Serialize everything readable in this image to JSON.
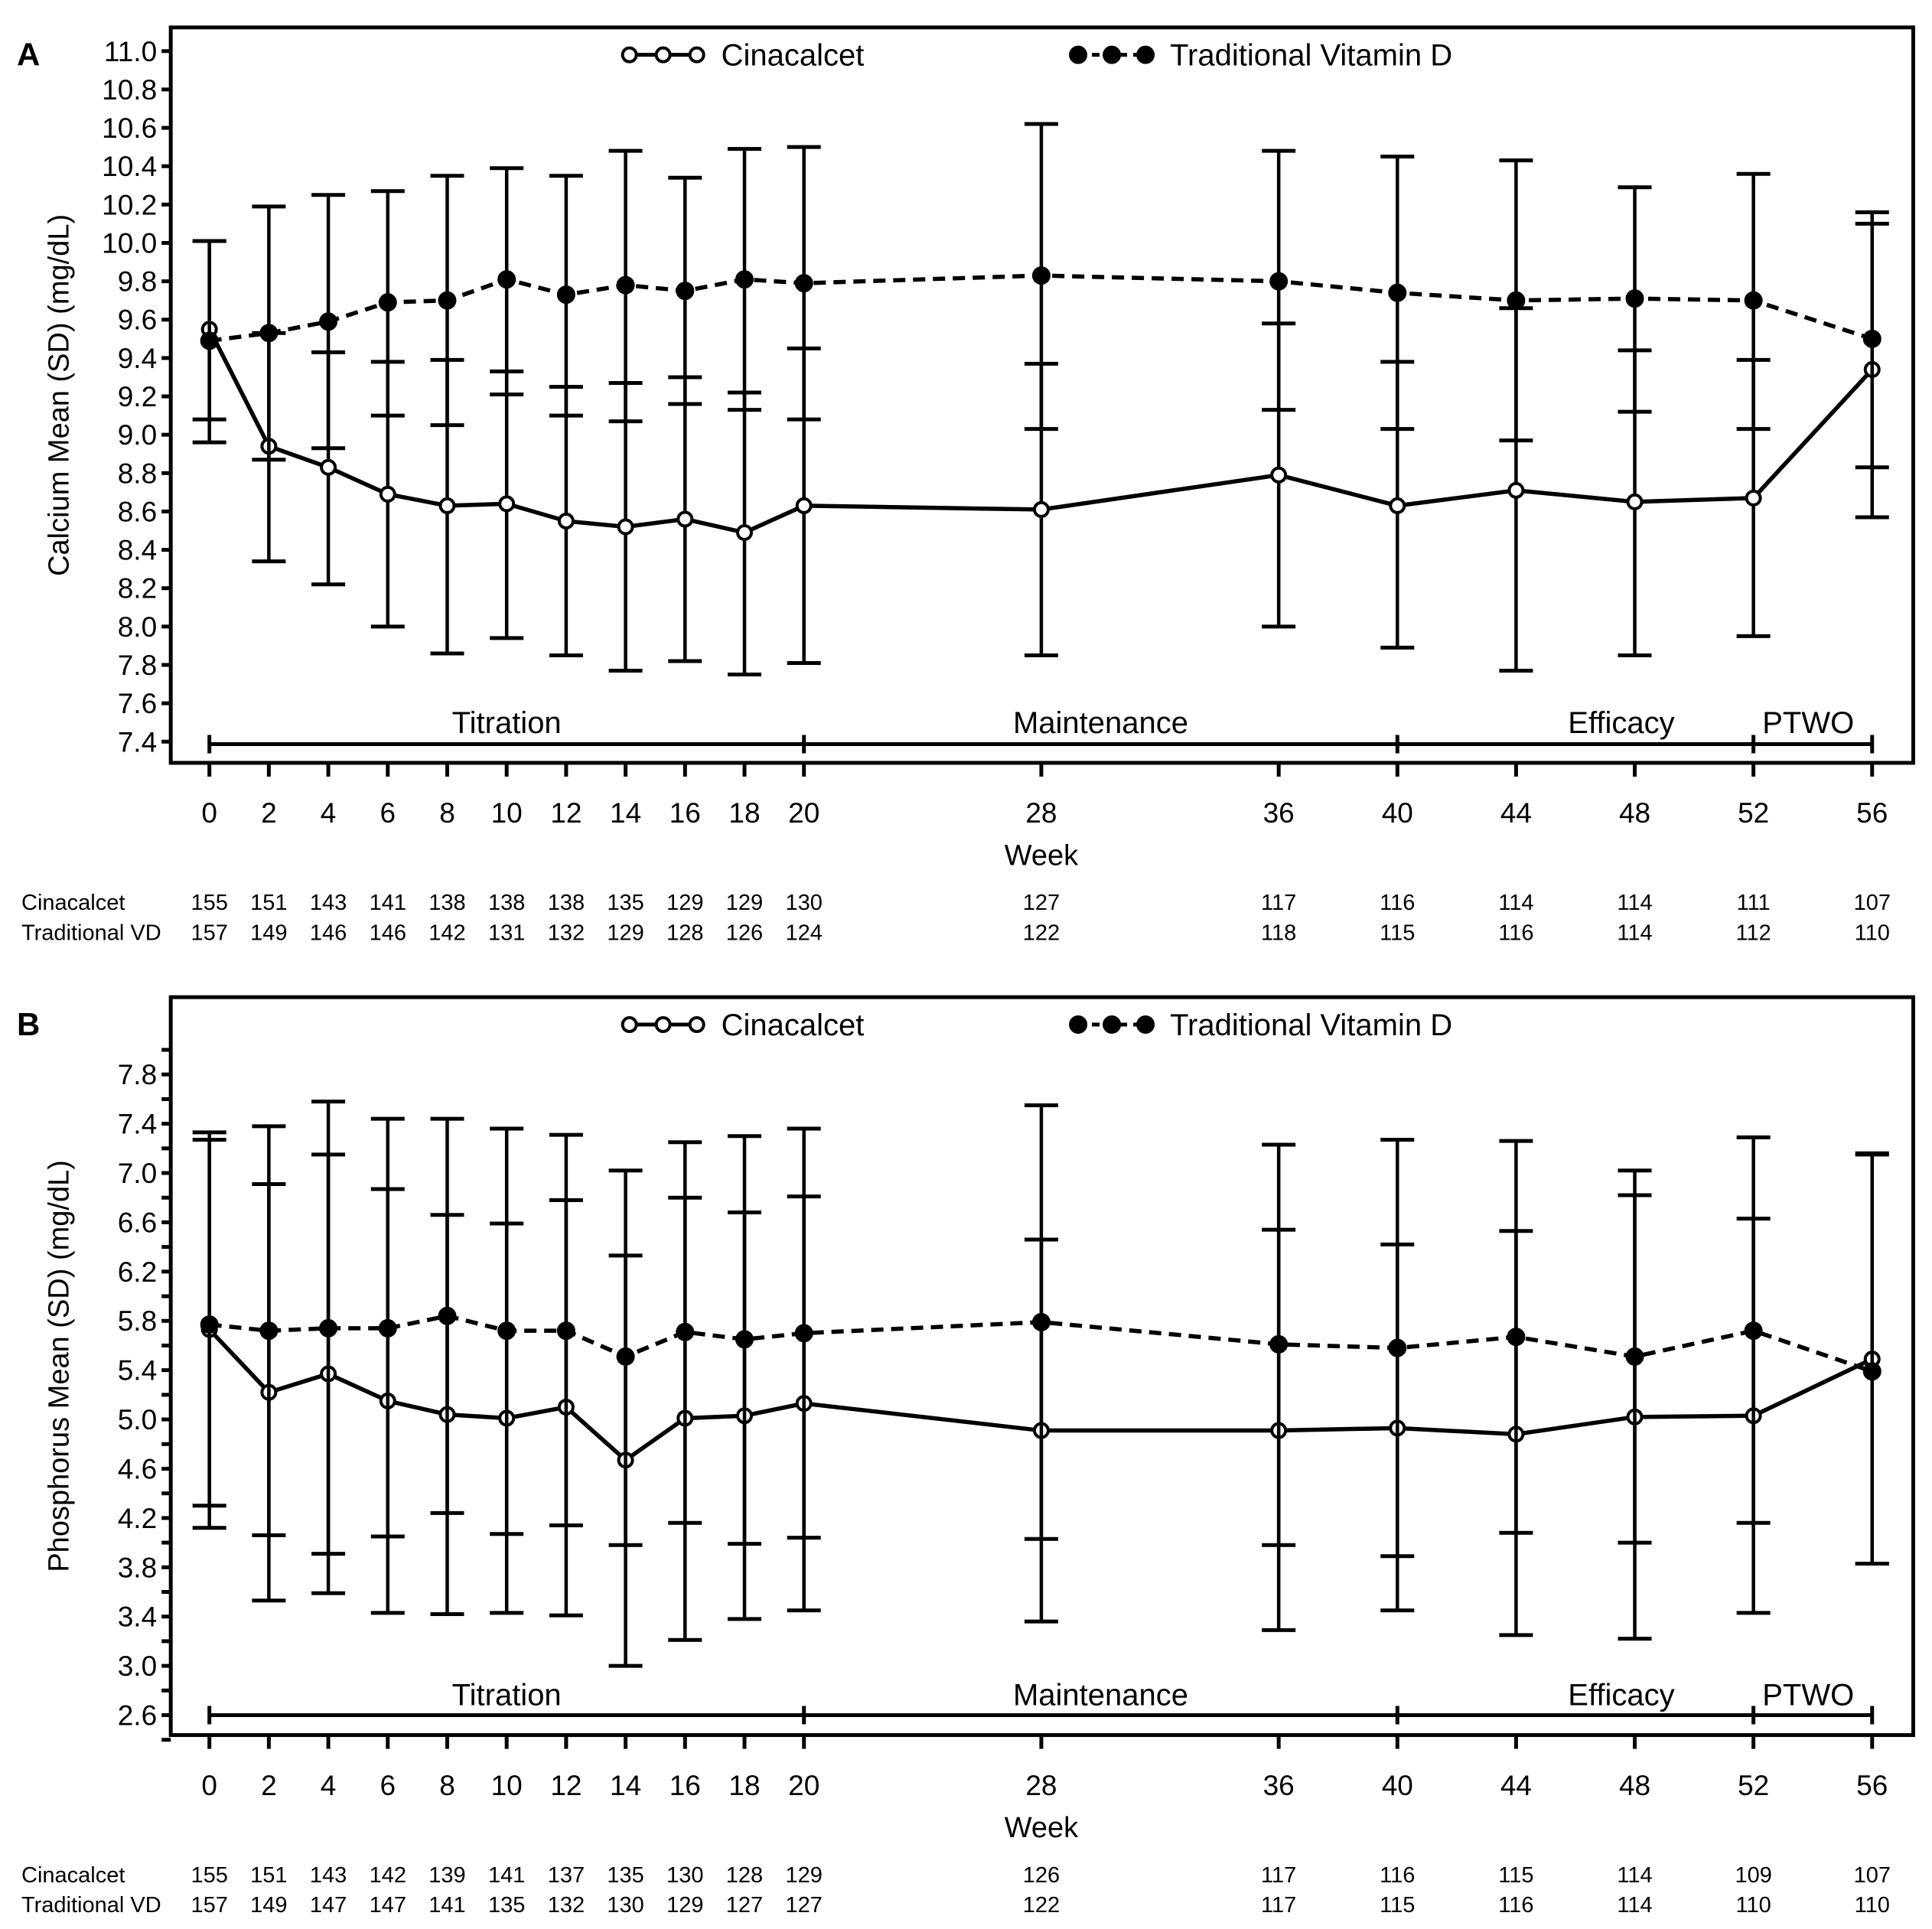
{
  "chart_data": [
    {
      "type": "line",
      "panel_label": "A",
      "title": "",
      "xlabel": "Week",
      "ylabel": "Calcium Mean (SD) (mg/dL)",
      "ylim": [
        7.3,
        11.1
      ],
      "yticks": [
        11.0,
        10.8,
        10.6,
        10.4,
        10.2,
        10.0,
        9.8,
        9.6,
        9.4,
        9.2,
        9.0,
        8.8,
        8.6,
        8.4,
        8.2,
        8.0,
        7.8,
        7.6,
        7.4
      ],
      "ytick_labels": [
        "11.0",
        "10.8",
        "10.6",
        "10.4",
        "10.2",
        "10.0",
        "9.8",
        "9.6",
        "9.4",
        "9.2",
        "9.0",
        "8.8",
        "8.6",
        "8.4",
        "8.2",
        "8.0",
        "7.8",
        "7.6",
        "7.4"
      ],
      "x": [
        0,
        2,
        4,
        6,
        8,
        10,
        12,
        14,
        16,
        18,
        20,
        28,
        36,
        40,
        44,
        48,
        52,
        56
      ],
      "xtick_labels": [
        "0",
        "2",
        "4",
        "6",
        "8",
        "10",
        "12",
        "14",
        "16",
        "18",
        "20",
        "28",
        "36",
        "40",
        "44",
        "48",
        "52",
        "56"
      ],
      "legend": "top-center",
      "series": [
        {
          "name": "Cinacalcet",
          "style": "solid-open-circle",
          "values": [
            9.55,
            8.94,
            8.83,
            8.69,
            8.63,
            8.64,
            8.55,
            8.52,
            8.56,
            8.49,
            8.63,
            8.61,
            8.79,
            8.63,
            8.71,
            8.65,
            8.67,
            9.34
          ],
          "upper": [
            10.01,
            9.53,
            9.43,
            9.38,
            9.39,
            9.33,
            9.25,
            9.27,
            9.3,
            9.22,
            9.45,
            9.37,
            9.58,
            9.38,
            9.66,
            9.44,
            9.39,
            10.1
          ],
          "lower": [
            9.08,
            8.34,
            8.22,
            8.0,
            7.86,
            7.94,
            7.85,
            7.77,
            7.82,
            7.75,
            7.81,
            7.85,
            8.0,
            7.89,
            7.77,
            7.85,
            7.95,
            8.57
          ],
          "n": [
            "155",
            "151",
            "143",
            "141",
            "138",
            "138",
            "138",
            "135",
            "129",
            "129",
            "130",
            "127",
            "117",
            "116",
            "114",
            "114",
            "111",
            "107"
          ]
        },
        {
          "name": "Traditional Vitamin D",
          "style": "dashed-filled-circle",
          "values": [
            9.49,
            9.53,
            9.59,
            9.69,
            9.7,
            9.81,
            9.73,
            9.78,
            9.75,
            9.81,
            9.79,
            9.83,
            9.8,
            9.74,
            9.7,
            9.71,
            9.7,
            9.5
          ],
          "upper": [
            10.01,
            10.19,
            10.25,
            10.27,
            10.35,
            10.39,
            10.35,
            10.48,
            10.34,
            10.49,
            10.5,
            10.62,
            10.48,
            10.45,
            10.43,
            10.29,
            10.36,
            10.16
          ],
          "lower": [
            8.96,
            8.87,
            8.93,
            9.1,
            9.05,
            9.21,
            9.1,
            9.07,
            9.16,
            9.13,
            9.08,
            9.03,
            9.13,
            9.03,
            8.97,
            9.12,
            9.03,
            8.83
          ],
          "n": [
            "157",
            "149",
            "146",
            "146",
            "142",
            "131",
            "132",
            "129",
            "128",
            "126",
            "124",
            "122",
            "118",
            "115",
            "116",
            "114",
            "112",
            "110"
          ]
        }
      ],
      "phases": [
        {
          "label": "Titration",
          "start": 0,
          "end": 20
        },
        {
          "label": "Maintenance",
          "start": 20,
          "end": 40
        },
        {
          "label": "Efficacy",
          "start": 40,
          "end": 52
        },
        {
          "label": "PTWO",
          "start": 52,
          "end": 56
        }
      ],
      "n_row_labels": [
        "Cinacalcet",
        "Traditional VD"
      ]
    },
    {
      "type": "line",
      "panel_label": "B",
      "title": "",
      "xlabel": "Week",
      "ylabel": "Phosphorus Mean (SD) (mg/dL)",
      "ylim": [
        2.4,
        8.2
      ],
      "yticks": [
        7.8,
        7.4,
        7.0,
        6.6,
        6.2,
        5.8,
        5.4,
        5.0,
        4.6,
        4.2,
        3.8,
        3.4,
        3.0,
        2.6
      ],
      "ytick_labels": [
        "7.8",
        "7.4",
        "7.0",
        "6.6",
        "6.2",
        "5.8",
        "5.4",
        "5.0",
        "4.6",
        "4.2",
        "3.8",
        "3.4",
        "3.0",
        "2.6"
      ],
      "x": [
        0,
        2,
        4,
        6,
        8,
        10,
        12,
        14,
        16,
        18,
        20,
        28,
        36,
        40,
        44,
        48,
        52,
        56
      ],
      "xtick_labels": [
        "0",
        "2",
        "4",
        "6",
        "8",
        "10",
        "12",
        "14",
        "16",
        "18",
        "20",
        "28",
        "36",
        "40",
        "44",
        "48",
        "52",
        "56"
      ],
      "legend": "top-center",
      "series": [
        {
          "name": "Cinacalcet",
          "style": "solid-open-circle",
          "values": [
            5.73,
            5.22,
            5.37,
            5.15,
            5.04,
            5.01,
            5.1,
            4.67,
            5.01,
            5.03,
            5.13,
            4.91,
            4.91,
            4.93,
            4.88,
            5.02,
            5.03,
            5.49
          ],
          "upper": [
            7.33,
            6.91,
            7.15,
            6.87,
            6.66,
            6.59,
            6.78,
            6.33,
            6.8,
            6.68,
            6.81,
            6.46,
            6.54,
            6.42,
            6.53,
            6.82,
            6.63,
            7.15
          ],
          "lower": [
            4.12,
            3.53,
            3.59,
            3.43,
            3.42,
            3.43,
            3.41,
            3.0,
            3.21,
            3.38,
            3.45,
            3.36,
            3.29,
            3.45,
            3.25,
            3.22,
            3.43,
            3.83
          ],
          "n": [
            "155",
            "151",
            "143",
            "142",
            "139",
            "141",
            "137",
            "135",
            "130",
            "128",
            "129",
            "126",
            "117",
            "116",
            "115",
            "114",
            "109",
            "107"
          ]
        },
        {
          "name": "Traditional Vitamin D",
          "style": "dashed-filled-circle",
          "values": [
            5.77,
            5.72,
            5.74,
            5.74,
            5.84,
            5.72,
            5.72,
            5.51,
            5.71,
            5.65,
            5.7,
            5.79,
            5.61,
            5.58,
            5.67,
            5.51,
            5.72,
            5.39
          ],
          "upper": [
            7.27,
            7.38,
            7.58,
            7.44,
            7.44,
            7.36,
            7.31,
            7.02,
            7.25,
            7.3,
            7.36,
            7.55,
            7.23,
            7.27,
            7.26,
            7.02,
            7.29,
            7.16
          ],
          "lower": [
            4.3,
            4.06,
            3.91,
            4.05,
            4.24,
            4.07,
            4.14,
            3.98,
            4.16,
            3.99,
            4.04,
            4.03,
            3.98,
            3.89,
            4.08,
            4.0,
            4.16,
            3.83
          ],
          "n": [
            "157",
            "149",
            "147",
            "147",
            "141",
            "135",
            "132",
            "130",
            "129",
            "127",
            "127",
            "122",
            "117",
            "115",
            "116",
            "114",
            "110",
            "110"
          ]
        }
      ],
      "phases": [
        {
          "label": "Titration",
          "start": 0,
          "end": 20
        },
        {
          "label": "Maintenance",
          "start": 20,
          "end": 40
        },
        {
          "label": "Efficacy",
          "start": 40,
          "end": 52
        },
        {
          "label": "PTWO",
          "start": 52,
          "end": 56
        }
      ],
      "n_row_labels": [
        "Cinacalcet",
        "Traditional VD"
      ]
    }
  ]
}
